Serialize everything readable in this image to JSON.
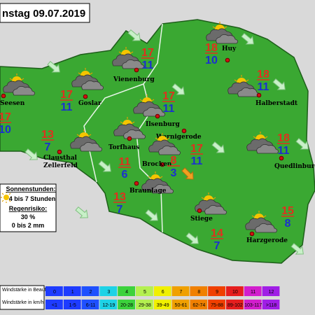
{
  "title": "nstag 09.07.2019",
  "towns": [
    {
      "name": "Seesen",
      "max": 17,
      "min": 10
    },
    {
      "name": "Goslar",
      "max": 17,
      "min": 11
    },
    {
      "name": "Vienenburg",
      "max": 17,
      "min": 11
    },
    {
      "name": "Huy",
      "max": 18,
      "min": 10
    },
    {
      "name": "Halberstadt",
      "max": 18,
      "min": 11
    },
    {
      "name": "Ilsenburg",
      "max": 17,
      "min": 11
    },
    {
      "name": "Wernigerode",
      "max": 17,
      "min": 11
    },
    {
      "name": "Clausthal",
      "name_line2": "Zellerfeld",
      "max": 13,
      "min": 7
    },
    {
      "name": "Torfhaus",
      "max": 11,
      "min": 6
    },
    {
      "name": "Brocken",
      "max": 8,
      "min": 3
    },
    {
      "name": "Quedlinburg",
      "max": 18,
      "min": 11
    },
    {
      "name": "Braunlage",
      "max": 13,
      "min": 7
    },
    {
      "name": "Stiege",
      "max": 14,
      "min": 7
    },
    {
      "name": "Harzgerode",
      "max": 15,
      "min": 8
    }
  ],
  "info": {
    "sun_label": "Sonnenstunden:",
    "sun_value": "4 bis 7 Stunden",
    "rain_label": "Regenrisiko:",
    "rain_percent": "30 %",
    "rain_amount": "0 bis 2 mm"
  },
  "wind_scale": {
    "beaufort_label": "Windstärke in Beaufort",
    "kmh_label": "Windstärke in km/h",
    "beaufort": [
      0,
      1,
      2,
      3,
      4,
      5,
      6,
      7,
      8,
      9,
      10,
      11,
      12
    ],
    "kmh": [
      "<1",
      "1-5",
      "6-11",
      "12-19",
      "20-28",
      "29-38",
      "39-49",
      "50-61",
      "62-74",
      "75-88",
      "89-102",
      "103-117",
      ">118"
    ]
  }
}
